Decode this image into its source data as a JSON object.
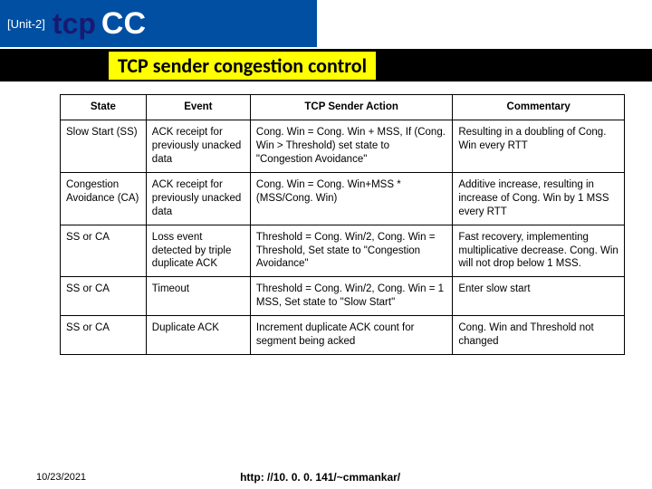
{
  "header": {
    "unit": "[Unit-2]",
    "tcp": "tcp",
    "cc": "CC"
  },
  "subtitle": "TCP sender congestion control",
  "table": {
    "columns": [
      "State",
      "Event",
      "TCP Sender Action",
      "Commentary"
    ],
    "rows": [
      {
        "state": "Slow Start (SS)",
        "event": "ACK receipt for previously unacked data",
        "action": "Cong. Win = Cong. Win + MSS, If (Cong. Win > Threshold)     set state to \"Congestion Avoidance\"",
        "commentary": "Resulting in a doubling of Cong. Win every RTT"
      },
      {
        "state": "Congestion Avoidance (CA)",
        "event": "ACK receipt for previously unacked data",
        "action": "Cong. Win = Cong. Win+MSS * (MSS/Cong. Win)",
        "commentary": "Additive increase, resulting in increase of Cong. Win  by 1 MSS every RTT"
      },
      {
        "state": "SS or CA",
        "event": "Loss event detected by triple duplicate ACK",
        "action": "Threshold = Cong. Win/2, Cong. Win = Threshold, Set state to \"Congestion Avoidance\"",
        "commentary": "Fast recovery, implementing multiplicative decrease. Cong. Win will not drop below 1 MSS."
      },
      {
        "state": "SS or CA",
        "event": "Timeout",
        "action": "Threshold = Cong. Win/2, Cong. Win = 1 MSS, Set state to \"Slow Start\"",
        "commentary": "Enter slow start"
      },
      {
        "state": "SS or CA",
        "event": "Duplicate ACK",
        "action": "Increment duplicate ACK count for segment being acked",
        "commentary": "Cong. Win and Threshold not changed"
      }
    ]
  },
  "footer": {
    "date": "10/23/2021",
    "url": "http: //10. 0. 0. 141/~cmmankar/"
  }
}
